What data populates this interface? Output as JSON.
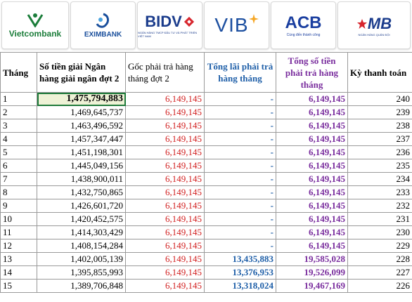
{
  "logos": [
    {
      "name": "Vietcombank"
    },
    {
      "name": "EXIMBANK"
    },
    {
      "name": "BIDV",
      "sub": "NGÂN HÀNG TMCP ĐẦU TƯ VÀ PHÁT TRIỂN VIỆT NAM"
    },
    {
      "name": "VIB"
    },
    {
      "name": "ACB",
      "sub": "Cùng đến thành công"
    },
    {
      "name": "MB",
      "sub": "NGÂN HÀNG QUÂN ĐỘI"
    }
  ],
  "table": {
    "headers": [
      "Tháng",
      "Số tiền giải Ngân hàng giải ngân đợt 2",
      "Gốc phải trả hàng tháng đợt 2",
      "Tổng lãi phải trả hàng tháng",
      "Tổng số tiền phải trả hàng tháng",
      "Kỳ thanh toán"
    ],
    "rows": [
      [
        "1",
        "1,475,794,883",
        "6,149,145",
        "-",
        "6,149,145",
        "240"
      ],
      [
        "2",
        "1,469,645,737",
        "6,149,145",
        "-",
        "6,149,145",
        "239"
      ],
      [
        "3",
        "1,463,496,592",
        "6,149,145",
        "-",
        "6,149,145",
        "238"
      ],
      [
        "4",
        "1,457,347,447",
        "6,149,145",
        "-",
        "6,149,145",
        "237"
      ],
      [
        "5",
        "1,451,198,301",
        "6,149,145",
        "-",
        "6,149,145",
        "236"
      ],
      [
        "6",
        "1,445,049,156",
        "6,149,145",
        "-",
        "6,149,145",
        "235"
      ],
      [
        "7",
        "1,438,900,011",
        "6,149,145",
        "-",
        "6,149,145",
        "234"
      ],
      [
        "8",
        "1,432,750,865",
        "6,149,145",
        "-",
        "6,149,145",
        "233"
      ],
      [
        "9",
        "1,426,601,720",
        "6,149,145",
        "-",
        "6,149,145",
        "232"
      ],
      [
        "10",
        "1,420,452,575",
        "6,149,145",
        "-",
        "6,149,145",
        "231"
      ],
      [
        "11",
        "1,414,303,429",
        "6,149,145",
        "-",
        "6,149,145",
        "230"
      ],
      [
        "12",
        "1,408,154,284",
        "6,149,145",
        "-",
        "6,149,145",
        "229"
      ],
      [
        "13",
        "1,402,005,139",
        "6,149,145",
        "13,435,883",
        "19,585,028",
        "228"
      ],
      [
        "14",
        "1,395,855,993",
        "6,149,145",
        "13,376,953",
        "19,526,099",
        "227"
      ],
      [
        "15",
        "1,389,706,848",
        "6,149,145",
        "13,318,024",
        "19,467,169",
        "226"
      ]
    ]
  }
}
